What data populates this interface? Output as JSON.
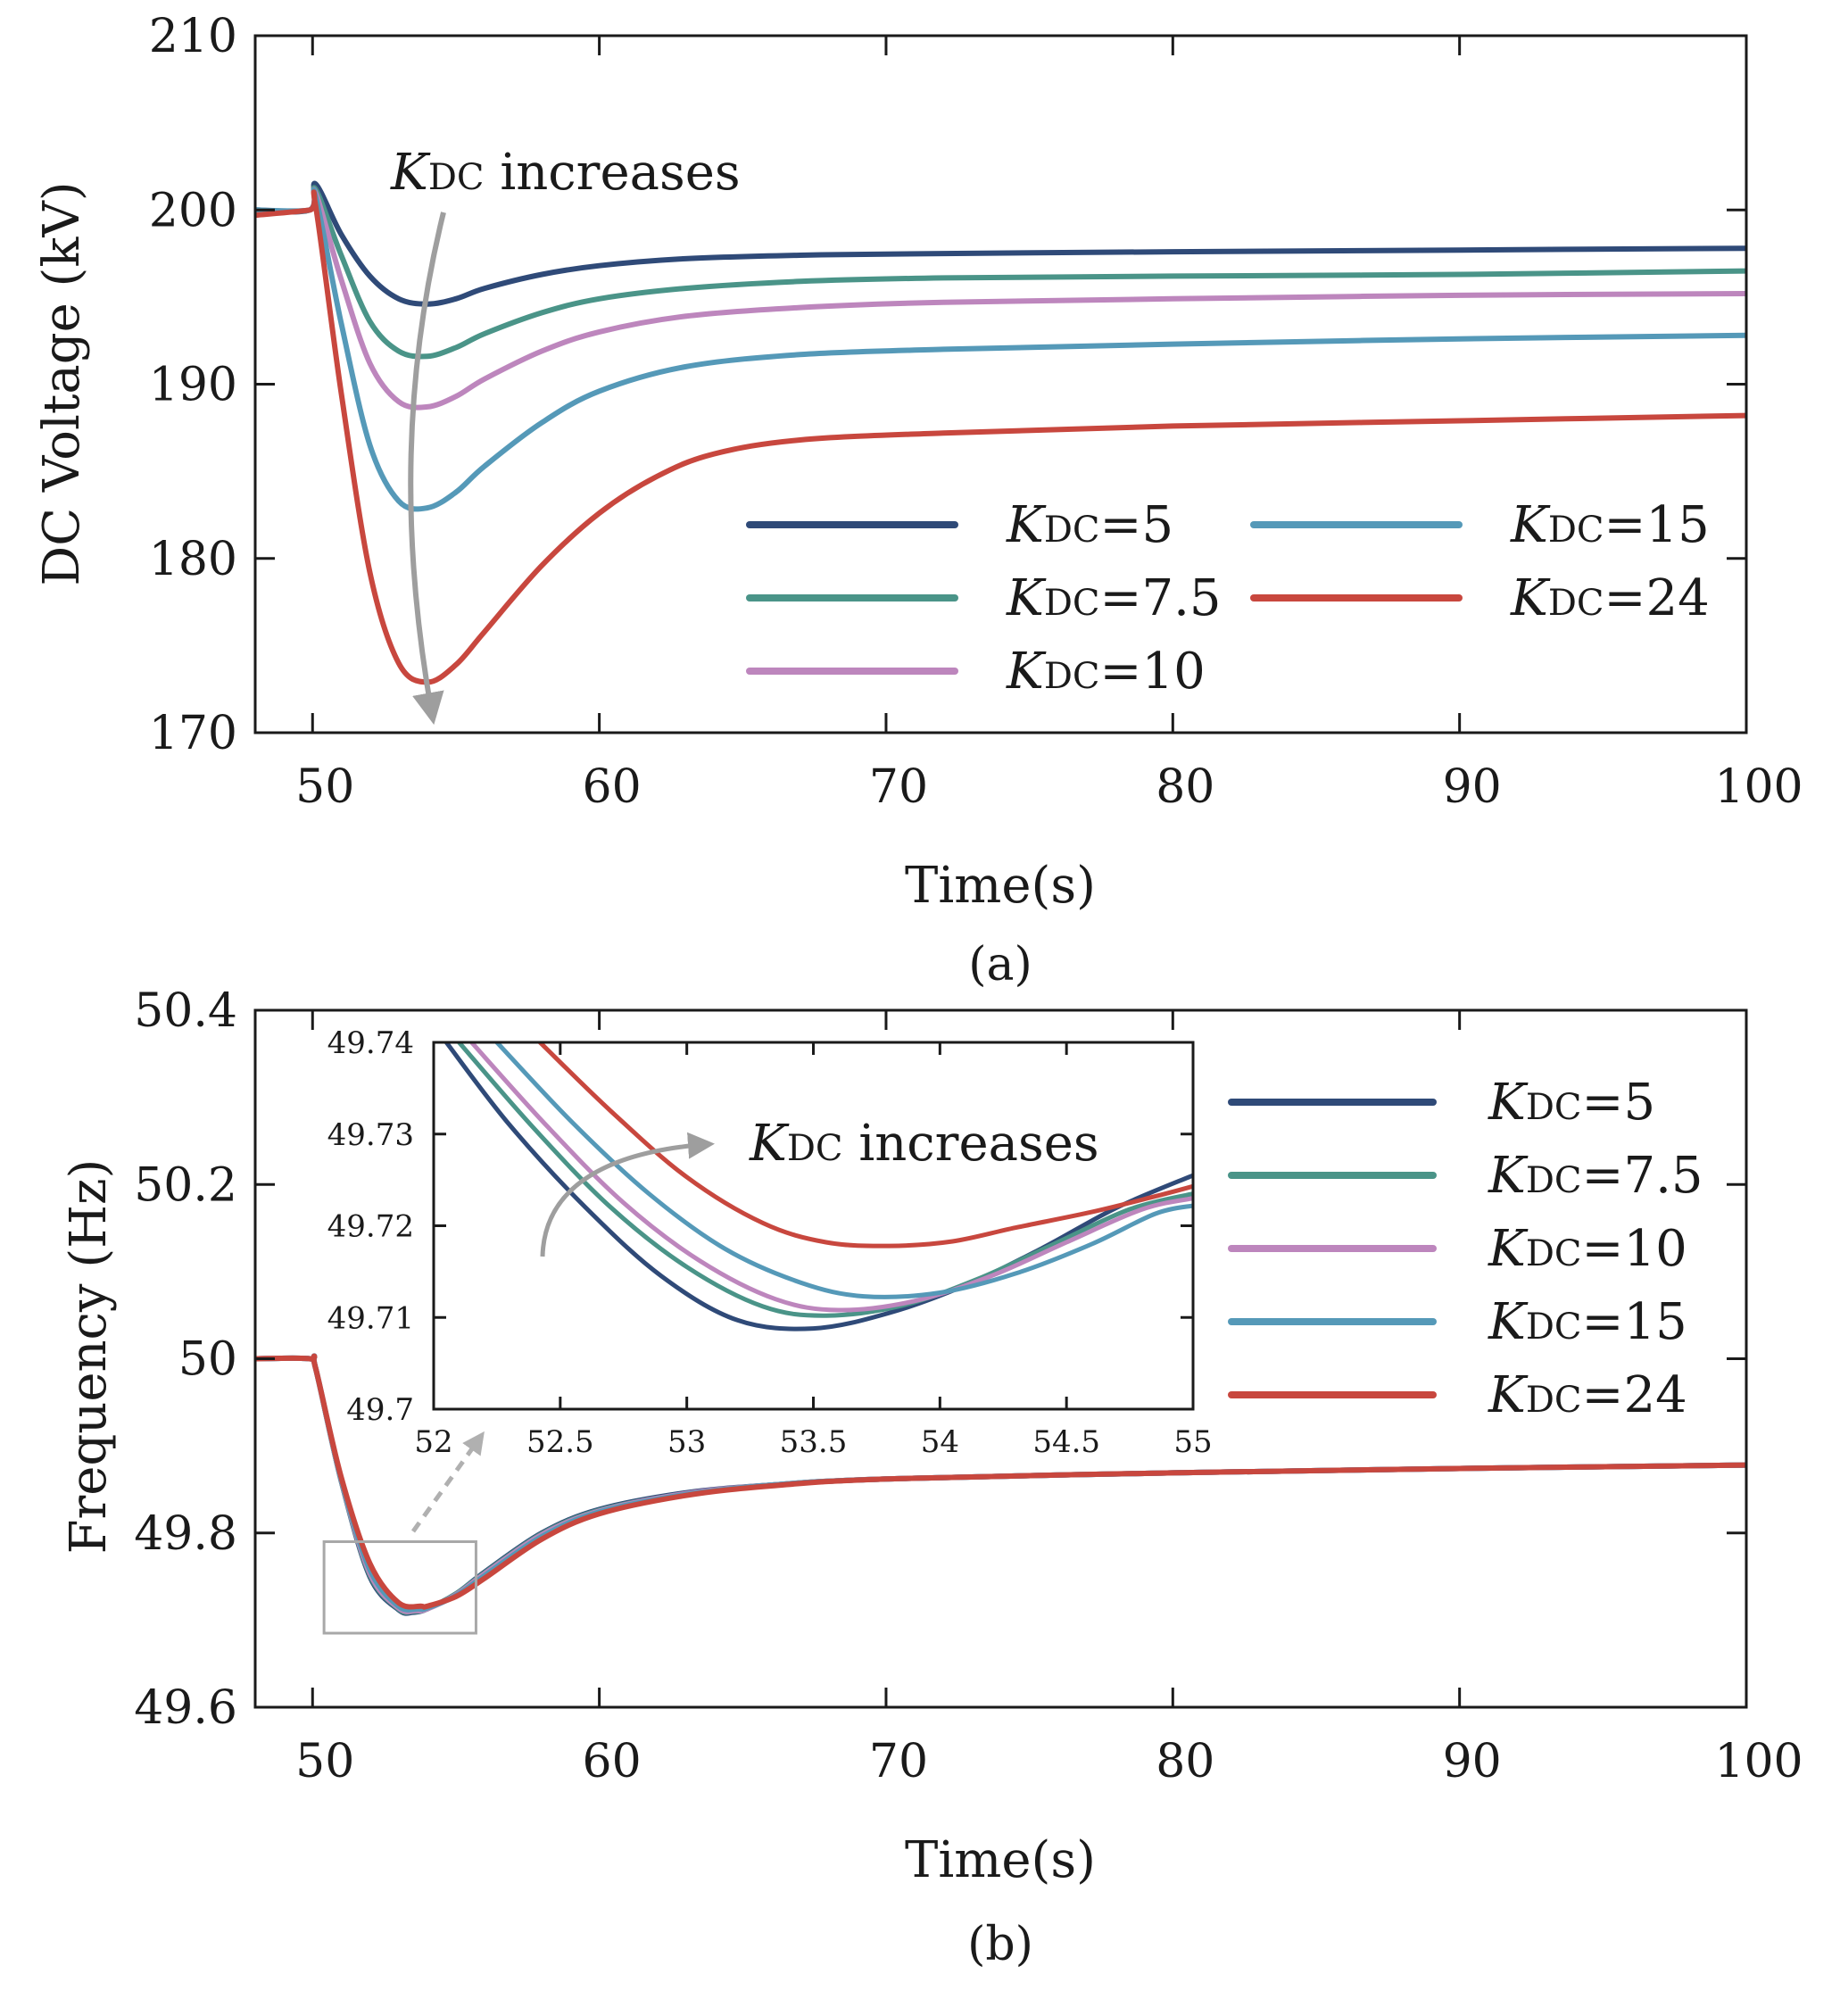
{
  "figure": {
    "panels": [
      {
        "id": "a",
        "caption": "(a)",
        "xlabel": "Time(s)",
        "ylabel": "DC Voltage (kV)",
        "annotation": {
          "k": "K",
          "sub": "DC",
          "text": " increases"
        },
        "legend_columns": 2
      },
      {
        "id": "b",
        "caption": "(b)",
        "xlabel": "Time(s)",
        "ylabel": "Frequency (Hz)",
        "legend_columns": 1,
        "inset": {
          "annotation": {
            "k": "K",
            "sub": "DC",
            "text": " increases"
          }
        }
      }
    ]
  },
  "chart_data": [
    {
      "type": "line",
      "xlim": [
        48,
        100
      ],
      "ylim": [
        170,
        210
      ],
      "xticks": [
        50,
        60,
        70,
        80,
        90,
        100
      ],
      "yticks": [
        170,
        180,
        190,
        200,
        210
      ],
      "grid": false,
      "legend_placement": "lower-right",
      "series": [
        {
          "name": "KDC=5",
          "label_k": "K",
          "label_sub": "DC",
          "label_val": "=5",
          "color": "#2f4a78",
          "x": [
            48,
            49.9,
            50.1,
            51,
            52,
            53,
            54,
            55,
            56,
            58,
            60,
            63,
            67,
            72,
            80,
            90,
            100
          ],
          "y": [
            200,
            200,
            201.5,
            198.6,
            196.2,
            194.9,
            194.6,
            194.9,
            195.5,
            196.3,
            196.8,
            197.2,
            197.4,
            197.5,
            197.6,
            197.7,
            197.8
          ]
        },
        {
          "name": "KDC=7.5",
          "label_k": "K",
          "label_sub": "DC",
          "label_val": "=7.5",
          "color": "#4a9488",
          "x": [
            48,
            49.9,
            50.1,
            51,
            52,
            53,
            54,
            55,
            56,
            58,
            60,
            63,
            67,
            72,
            80,
            90,
            100
          ],
          "y": [
            200,
            200,
            201.2,
            197.4,
            193.6,
            191.9,
            191.6,
            192.1,
            192.9,
            194.1,
            194.9,
            195.5,
            195.9,
            196.1,
            196.2,
            196.3,
            196.5
          ]
        },
        {
          "name": "KDC=10",
          "label_k": "K",
          "label_sub": "DC",
          "label_val": "=10",
          "color": "#bd86bd",
          "x": [
            48,
            49.9,
            50.1,
            51,
            52,
            53,
            54,
            55,
            56,
            58,
            60,
            63,
            67,
            72,
            80,
            90,
            100
          ],
          "y": [
            200,
            200,
            201,
            196,
            191.2,
            189,
            188.7,
            189.3,
            190.3,
            191.9,
            193,
            193.9,
            194.4,
            194.7,
            194.9,
            195.1,
            195.2
          ]
        },
        {
          "name": "KDC=15",
          "label_k": "K",
          "label_sub": "DC",
          "label_val": "=15",
          "color": "#5599b8",
          "x": [
            48,
            49.9,
            50.1,
            51,
            52,
            53,
            54,
            55,
            56,
            58,
            60,
            63,
            67,
            72,
            80,
            90,
            100
          ],
          "y": [
            200,
            200,
            200.8,
            193.5,
            186.5,
            183.3,
            182.9,
            183.8,
            185.3,
            187.8,
            189.6,
            191,
            191.7,
            192,
            192.3,
            192.6,
            192.8
          ]
        },
        {
          "name": "KDC=24",
          "label_k": "K",
          "label_sub": "DC",
          "label_val": "=24",
          "color": "#c8473e",
          "x": [
            48,
            49.9,
            50.1,
            51,
            52,
            53,
            54,
            55,
            56,
            58,
            60,
            62,
            64,
            67,
            72,
            80,
            90,
            100
          ],
          "y": [
            199.7,
            200,
            200.3,
            189.5,
            179.2,
            174,
            172.9,
            173.9,
            175.8,
            179.6,
            182.6,
            184.7,
            186,
            186.8,
            187.2,
            187.6,
            187.9,
            188.2
          ]
        }
      ]
    },
    {
      "type": "line",
      "xlim": [
        48,
        100
      ],
      "ylim": [
        49.6,
        50.4
      ],
      "xticks": [
        50,
        60,
        70,
        80,
        90,
        100
      ],
      "yticks": [
        49.6,
        49.8,
        50,
        50.2,
        50.4
      ],
      "ytick_labels": [
        "49.6",
        "49.8",
        "50",
        "50.2",
        "50.4"
      ],
      "grid": false,
      "legend_placement": "right",
      "zoom_box": {
        "x": [
          50.4,
          55.7
        ],
        "y": [
          49.685,
          49.79
        ]
      },
      "series": [
        {
          "name": "KDC=5",
          "label_k": "K",
          "label_sub": "DC",
          "label_val": "=5",
          "color": "#2f4a78",
          "x": [
            48,
            49.9,
            50.1,
            51,
            52,
            53,
            53.5,
            54,
            55,
            56,
            58,
            60,
            63,
            66,
            70,
            80,
            90,
            100
          ],
          "y": [
            50,
            50,
            49.99,
            49.86,
            49.75,
            49.712,
            49.709,
            49.713,
            49.73,
            49.755,
            49.8,
            49.827,
            49.846,
            49.855,
            49.862,
            49.869,
            49.874,
            49.878
          ]
        },
        {
          "name": "KDC=7.5",
          "label_k": "K",
          "label_sub": "DC",
          "label_val": "=7.5",
          "color": "#4a9488",
          "x": [
            48,
            49.9,
            50.1,
            51,
            52,
            53,
            53.5,
            54,
            55,
            56,
            58,
            60,
            63,
            66,
            70,
            80,
            90,
            100
          ],
          "y": [
            50,
            50,
            49.99,
            49.86,
            49.752,
            49.713,
            49.71,
            49.713,
            49.73,
            49.754,
            49.799,
            49.826,
            49.845,
            49.855,
            49.862,
            49.869,
            49.874,
            49.878
          ]
        },
        {
          "name": "KDC=10",
          "label_k": "K",
          "label_sub": "DC",
          "label_val": "=10",
          "color": "#bd86bd",
          "x": [
            48,
            49.9,
            50.1,
            51,
            52,
            53,
            53.6,
            54,
            55,
            56,
            58,
            60,
            63,
            66,
            70,
            80,
            90,
            100
          ],
          "y": [
            50,
            50,
            49.99,
            49.861,
            49.754,
            49.714,
            49.711,
            49.713,
            49.729,
            49.753,
            49.798,
            49.825,
            49.845,
            49.855,
            49.862,
            49.869,
            49.874,
            49.878
          ]
        },
        {
          "name": "KDC=15",
          "label_k": "K",
          "label_sub": "DC",
          "label_val": "=15",
          "color": "#5599b8",
          "x": [
            48,
            49.9,
            50.1,
            51,
            52,
            53,
            53.7,
            54,
            55,
            56,
            58,
            60,
            63,
            66,
            70,
            80,
            90,
            100
          ],
          "y": [
            50,
            50,
            49.99,
            49.862,
            49.758,
            49.716,
            49.713,
            49.714,
            49.728,
            49.751,
            49.796,
            49.824,
            49.844,
            49.855,
            49.862,
            49.869,
            49.874,
            49.878
          ]
        },
        {
          "name": "KDC=24",
          "label_k": "K",
          "label_sub": "DC",
          "label_val": "=24",
          "color": "#c8473e",
          "x": [
            48,
            49.9,
            50.1,
            51,
            52,
            53,
            53.8,
            54,
            55,
            56,
            58,
            60,
            63,
            66,
            70,
            80,
            90,
            100
          ],
          "y": [
            50,
            50,
            49.99,
            49.864,
            49.765,
            49.72,
            49.716,
            49.716,
            49.727,
            49.748,
            49.793,
            49.822,
            49.843,
            49.854,
            49.862,
            49.869,
            49.874,
            49.878
          ]
        }
      ],
      "inset": {
        "type": "line",
        "xlim": [
          52,
          55
        ],
        "ylim": [
          49.7,
          49.74
        ],
        "xticks": [
          52,
          52.5,
          53,
          53.5,
          54,
          54.5,
          55
        ],
        "xtick_labels": [
          "52",
          "52.5",
          "53",
          "53.5",
          "54",
          "54.5",
          "55"
        ],
        "yticks": [
          49.7,
          49.71,
          49.72,
          49.73,
          49.74
        ],
        "ytick_labels": [
          "49.7",
          "49.71",
          "49.72",
          "49.73",
          "49.74"
        ],
        "series": [
          {
            "name": "KDC=5",
            "color": "#2f4a78",
            "x": [
              52.05,
              52.3,
              52.6,
              52.9,
              53.2,
              53.5,
              53.8,
              54.1,
              54.4,
              54.7,
              55
            ],
            "y": [
              49.74,
              49.731,
              49.722,
              49.7145,
              49.7097,
              49.7088,
              49.7105,
              49.7135,
              49.7175,
              49.722,
              49.7255
            ]
          },
          {
            "name": "KDC=7.5",
            "color": "#4a9488",
            "x": [
              52.1,
              52.4,
              52.7,
              53,
              53.3,
              53.55,
              53.85,
              54.15,
              54.45,
              54.75,
              55
            ],
            "y": [
              49.74,
              49.7305,
              49.722,
              49.7155,
              49.7112,
              49.7102,
              49.7113,
              49.7142,
              49.718,
              49.7218,
              49.7235
            ]
          },
          {
            "name": "KDC=10",
            "color": "#bd86bd",
            "x": [
              52.15,
              52.45,
              52.75,
              53.05,
              53.35,
              53.6,
              53.9,
              54.2,
              54.5,
              54.8,
              55
            ],
            "y": [
              49.74,
              49.7308,
              49.7225,
              49.7162,
              49.712,
              49.7108,
              49.7118,
              49.7145,
              49.7182,
              49.7218,
              49.723
            ]
          },
          {
            "name": "KDC=15",
            "color": "#5599b8",
            "x": [
              52.25,
              52.55,
              52.85,
              53.15,
              53.45,
              53.7,
              54,
              54.3,
              54.6,
              54.85,
              55
            ],
            "y": [
              49.74,
              49.7312,
              49.7235,
              49.7175,
              49.7138,
              49.7123,
              49.7127,
              49.7148,
              49.718,
              49.7213,
              49.7222
            ]
          },
          {
            "name": "KDC=24",
            "color": "#c8473e",
            "x": [
              52.42,
              52.7,
              53,
              53.3,
              53.55,
              53.8,
              54.05,
              54.3,
              54.6,
              54.85,
              55
            ],
            "y": [
              49.74,
              49.7325,
              49.7253,
              49.7203,
              49.7182,
              49.7178,
              49.7183,
              49.7198,
              49.7215,
              49.7232,
              49.7243
            ]
          }
        ]
      }
    }
  ]
}
